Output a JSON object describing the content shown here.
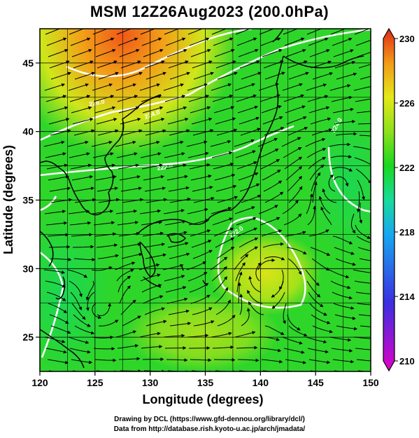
{
  "title": "MSM 12Z26Aug2023 (200.0hPa)",
  "axes": {
    "xlabel": "Longitude (degrees)",
    "ylabel": "Latitude  (degrees)",
    "x_ticks": [
      "120",
      "125",
      "130",
      "135",
      "140",
      "145",
      "150"
    ],
    "y_ticks": [
      "25",
      "30",
      "35",
      "40",
      "45"
    ],
    "xlim": [
      120,
      150
    ],
    "ylim": [
      22.5,
      47.5
    ]
  },
  "colorbar": {
    "ticks": [
      "210",
      "214",
      "218",
      "222",
      "226",
      "230"
    ],
    "min": 210,
    "max": 230,
    "colors": [
      "#e000c8",
      "#3a2fe0",
      "#1f8cf0",
      "#17e0d0",
      "#19d820",
      "#5ae020",
      "#d8ea18",
      "#f7b418",
      "#f06018",
      "#e02a18"
    ]
  },
  "contour_labels": [
    "226.0",
    "224.0",
    "222.0",
    "224.0",
    "222.0"
  ],
  "footer": {
    "line1": "Drawing by DCL (https://www.gfd-dennou.org/library/dcl/)",
    "line2": "Data from http://database.rish.kyoto-u.ac.jp/arch/jmadata/"
  }
}
